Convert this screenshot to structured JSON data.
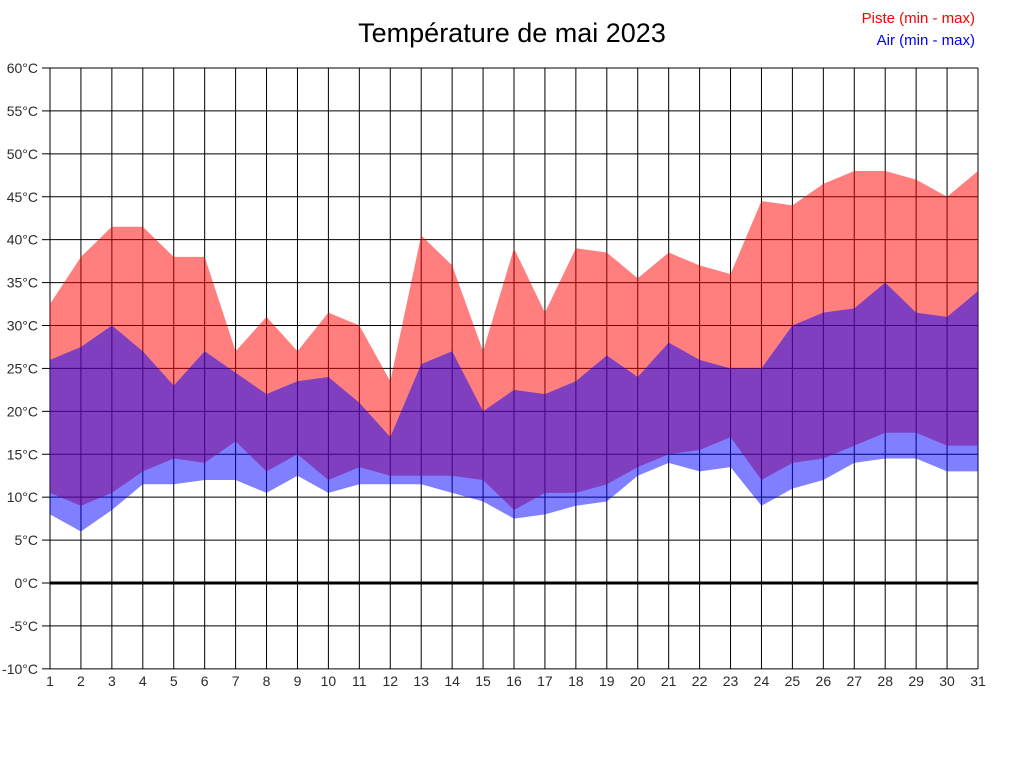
{
  "title": "Température de mai 2023",
  "legend": {
    "piste": {
      "label": "Piste (min - max)",
      "color": "#ff0000"
    },
    "air": {
      "label": "Air (min - max)",
      "color": "#0000ff"
    }
  },
  "chart_data": {
    "type": "area",
    "title": "Température de mai 2023",
    "x": [
      1,
      2,
      3,
      4,
      5,
      6,
      7,
      8,
      9,
      10,
      11,
      12,
      13,
      14,
      15,
      16,
      17,
      18,
      19,
      20,
      21,
      22,
      23,
      24,
      25,
      26,
      27,
      28,
      29,
      30,
      31
    ],
    "ylim": [
      -10,
      60
    ],
    "ytick_step": 5,
    "ytick_suffix": "°C",
    "grid": true,
    "legend_position": "top-right",
    "zero_line": true,
    "series": [
      {
        "name": "Piste (min - max)",
        "data_name": "piste-band",
        "color": "#ff0000",
        "opacity": 0.5,
        "max": [
          32.5,
          38,
          41.5,
          41.5,
          38,
          38,
          27,
          31,
          27,
          31.5,
          30,
          23.5,
          40.5,
          37,
          27,
          39,
          31.5,
          39,
          38.5,
          35.5,
          38.5,
          37,
          36,
          44.5,
          44,
          46.5,
          48,
          48,
          47,
          45,
          48
        ],
        "min": [
          10.5,
          9,
          10.5,
          13,
          14.5,
          14,
          16.5,
          13,
          15,
          12,
          13.5,
          12.5,
          12.5,
          12.5,
          12,
          8.5,
          10.5,
          10.5,
          11.5,
          13.5,
          15,
          15.5,
          17,
          12,
          14,
          14.5,
          16,
          17.5,
          17.5,
          16,
          16
        ]
      },
      {
        "name": "Air (min - max)",
        "data_name": "air-band",
        "color": "#0000ff",
        "opacity": 0.5,
        "max": [
          26,
          27.5,
          30,
          27,
          23,
          27,
          24.5,
          22,
          23.5,
          24,
          21,
          17,
          25.5,
          27,
          20,
          22.5,
          22,
          23.5,
          26.5,
          24,
          28,
          26,
          25,
          25,
          30,
          31.5,
          32,
          35,
          31.5,
          31,
          34
        ],
        "min": [
          8,
          6,
          8.5,
          11.5,
          11.5,
          12,
          12,
          10.5,
          12.5,
          10.5,
          11.5,
          11.5,
          11.5,
          10.5,
          9.5,
          7.5,
          8,
          9,
          9.5,
          12.5,
          14,
          13,
          13.5,
          9,
          11,
          12,
          14,
          14.5,
          14.5,
          13,
          13
        ]
      }
    ]
  }
}
